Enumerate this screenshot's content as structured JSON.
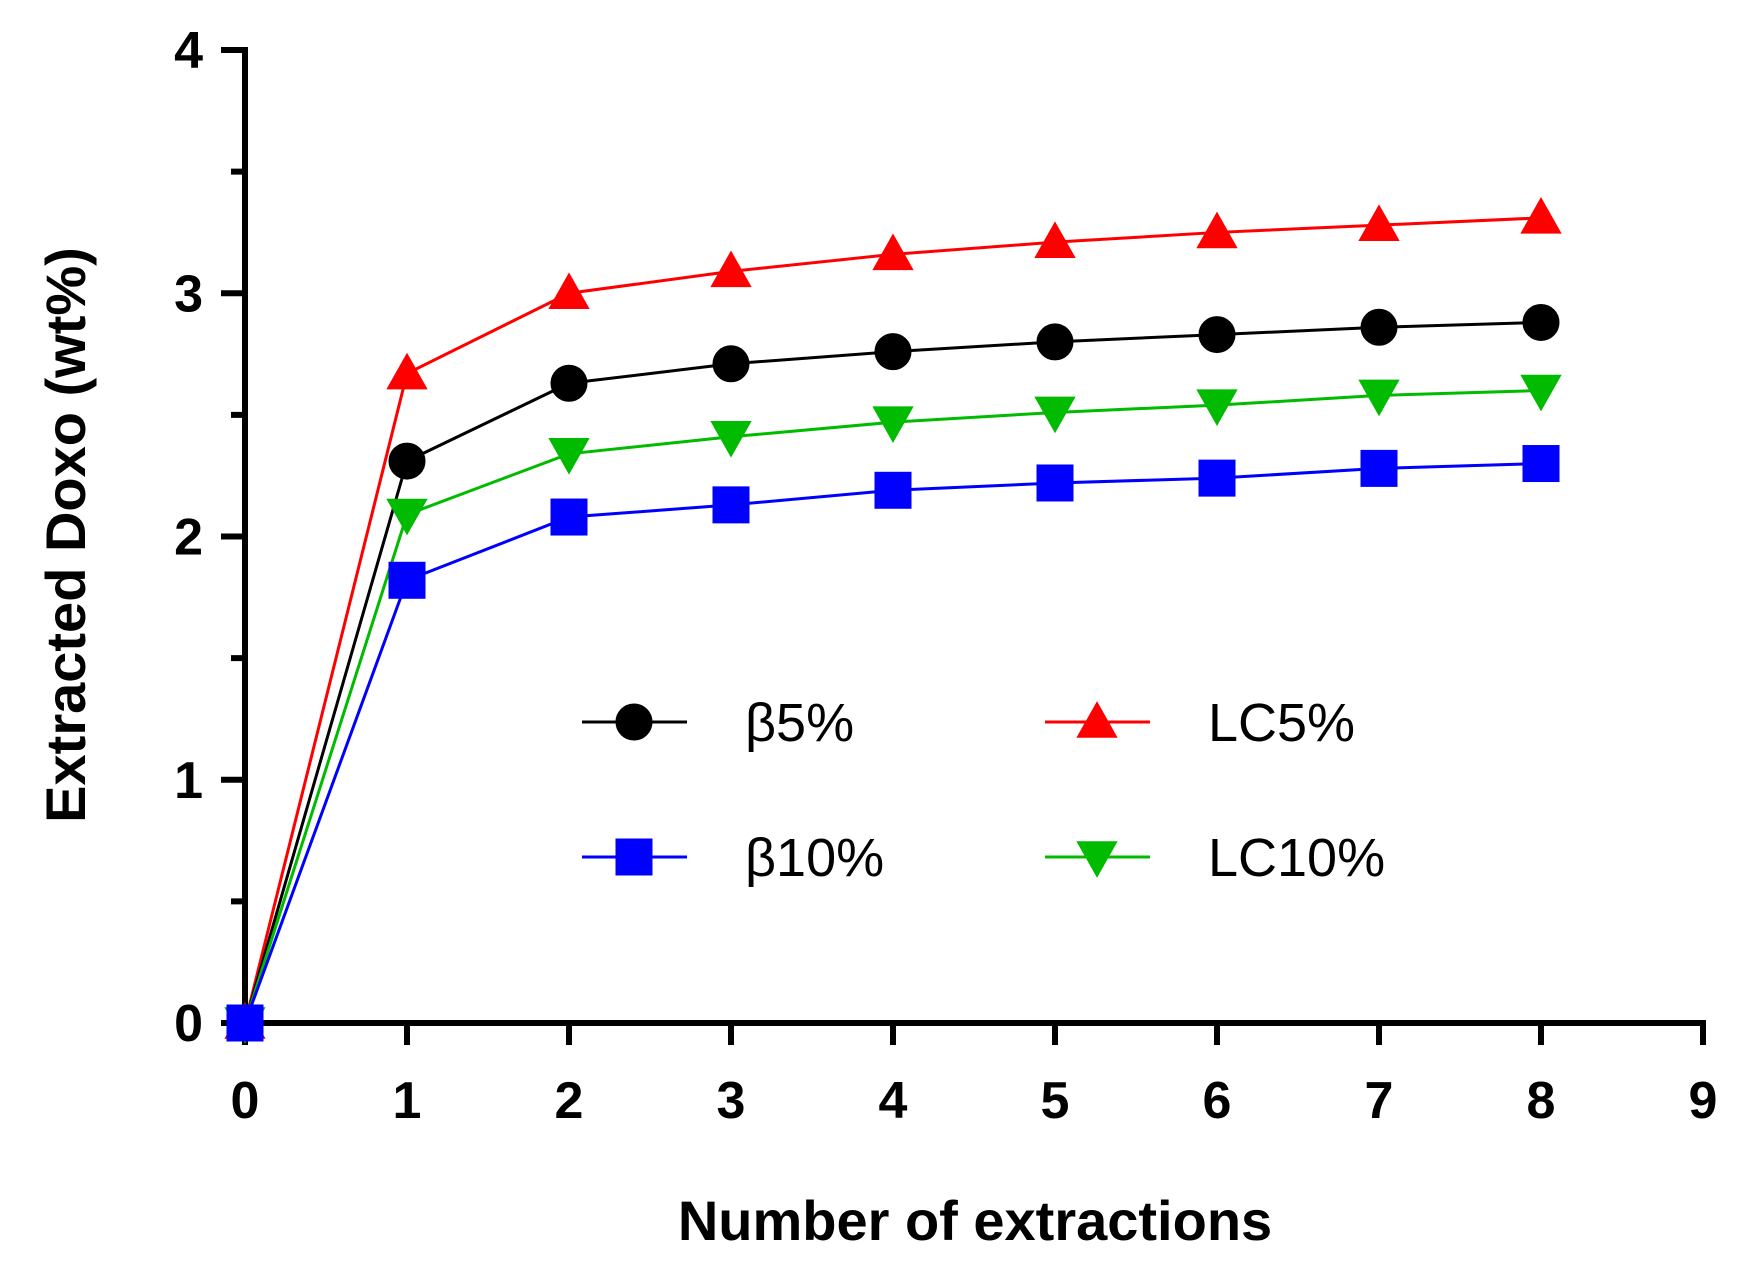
{
  "chart_data": {
    "type": "line",
    "xlabel": "Number of extractions",
    "ylabel": "Extracted Doxo (wt%)",
    "xlim": [
      0,
      9
    ],
    "ylim": [
      0,
      4
    ],
    "x_ticks": [
      "0",
      "1",
      "2",
      "3",
      "4",
      "5",
      "6",
      "7",
      "8",
      "9"
    ],
    "y_ticks": [
      "0",
      "1",
      "2",
      "3",
      "4"
    ],
    "x_tick_values": [
      0,
      1,
      2,
      3,
      4,
      5,
      6,
      7,
      8,
      9
    ],
    "y_tick_values": [
      0,
      1,
      2,
      3,
      4
    ],
    "y_minor_ticks": [
      0.5,
      1.5,
      2.5,
      3.5
    ],
    "grid": false,
    "legend_position": "center",
    "x": [
      0,
      1,
      2,
      3,
      4,
      5,
      6,
      7,
      8
    ],
    "series": [
      {
        "name": "β5%",
        "color": "#000000",
        "marker": "circle",
        "values": [
          0,
          2.31,
          2.63,
          2.71,
          2.76,
          2.8,
          2.83,
          2.86,
          2.88
        ]
      },
      {
        "name": "LC5%",
        "color": "#ff0000",
        "marker": "triangle-up",
        "values": [
          0,
          2.67,
          3.0,
          3.09,
          3.16,
          3.21,
          3.25,
          3.28,
          3.31
        ]
      },
      {
        "name": "β10%",
        "color": "#0000ff",
        "marker": "square",
        "values": [
          0,
          1.82,
          2.08,
          2.13,
          2.19,
          2.22,
          2.24,
          2.28,
          2.3
        ]
      },
      {
        "name": "LC10%",
        "color": "#00bb00",
        "marker": "triangle-down",
        "values": [
          0,
          2.09,
          2.34,
          2.41,
          2.47,
          2.51,
          2.54,
          2.58,
          2.6
        ]
      }
    ]
  }
}
